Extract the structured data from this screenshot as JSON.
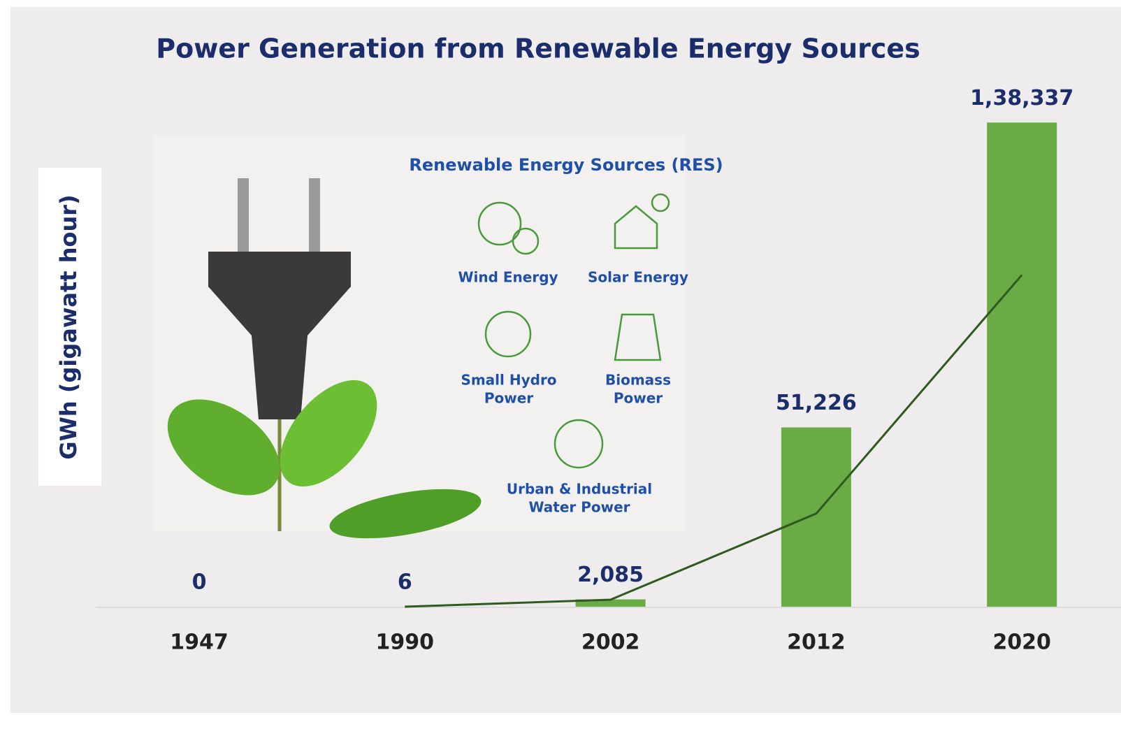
{
  "chart_data": {
    "type": "bar",
    "title": "Power Generation from Renewable Energy Sources",
    "y_label": "GWh (gigawatt hour)",
    "categories": [
      "1947",
      "1990",
      "2002",
      "2012",
      "2020"
    ],
    "values": [
      0,
      6,
      2085,
      51226,
      138337
    ],
    "value_labels": [
      "0",
      "6",
      "2,085",
      "51,226",
      "1,38,337"
    ],
    "color": "#6aab45",
    "line": {
      "values": [
        null,
        0,
        2000,
        26600,
        94800
      ],
      "color": "#2f5a1f"
    },
    "ylim": [
      0,
      140000
    ],
    "grid": false
  },
  "inset": {
    "title": "Renewable Energy Sources (RES)",
    "items": [
      {
        "lines": [
          "Wind Energy"
        ]
      },
      {
        "lines": [
          "Solar Energy"
        ]
      },
      {
        "lines": [
          "Small Hydro",
          "Power"
        ]
      },
      {
        "lines": [
          "Biomass",
          "Power"
        ]
      },
      {
        "lines": [
          "Urban & Industrial",
          "Water Power"
        ]
      }
    ]
  }
}
